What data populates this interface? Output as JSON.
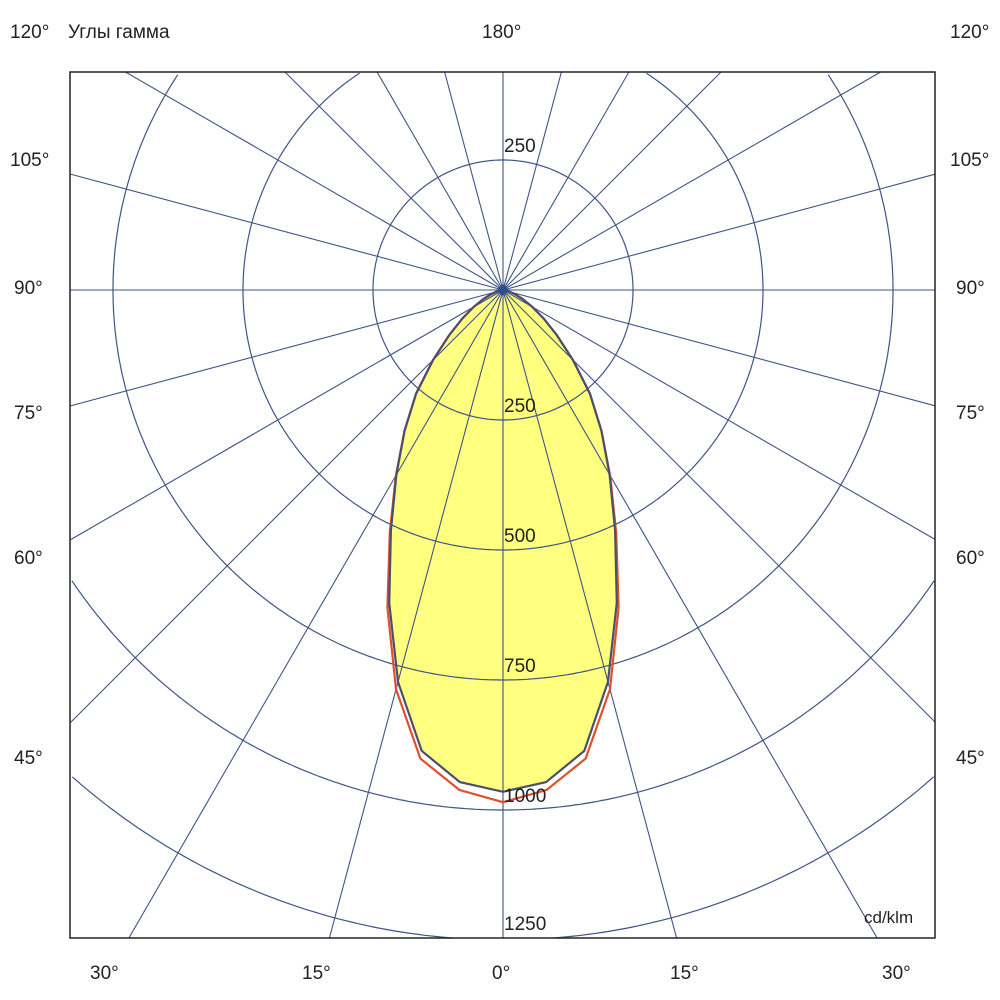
{
  "chart_data": {
    "type": "polar",
    "title": "Углы гамма",
    "unit_label": "cd/klm",
    "top_label": "180°",
    "side_labels": [
      "120°",
      "105°",
      "90°",
      "75°",
      "60°",
      "45°"
    ],
    "bottom_labels": [
      "30°",
      "15°",
      "0°",
      "15°",
      "30°"
    ],
    "radial_ticks": [
      250,
      500,
      750,
      1000,
      1250
    ],
    "top_radial_tick": "250",
    "spoke_step_deg": 15,
    "gamma": [
      0,
      5,
      10,
      15,
      20,
      25,
      30,
      35,
      40,
      45,
      50,
      55,
      60,
      65,
      70,
      75,
      80,
      85,
      90
    ],
    "series": [
      {
        "color": "#4a4f6e",
        "values": [
          965,
          950,
          900,
          780,
          640,
          510,
          410,
          330,
          260,
          190,
          135,
          95,
          65,
          42,
          25,
          14,
          6,
          2,
          0
        ]
      },
      {
        "color": "#e0502c",
        "values": [
          985,
          965,
          915,
          795,
          650,
          515,
          412,
          330,
          260,
          190,
          135,
          95,
          65,
          42,
          25,
          14,
          6,
          2,
          0
        ]
      }
    ],
    "fill_color": "#ffff80",
    "grid_color": "#3e5585"
  }
}
